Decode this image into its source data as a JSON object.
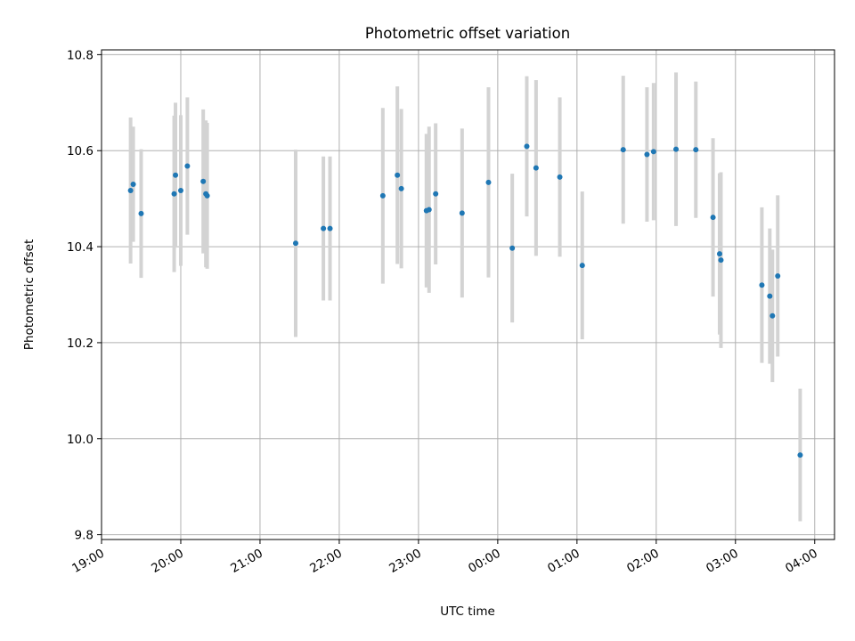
{
  "chart_data": {
    "type": "scatter",
    "title": "Photometric offset variation",
    "xlabel": "UTC time",
    "ylabel": "Photometric offset",
    "x_unit": "UTC time (hours since 19:00 on the first night)",
    "xlim": [
      "19:00",
      "04:15"
    ],
    "ylim": [
      9.79,
      10.81
    ],
    "xticks": [
      "19:00",
      "20:00",
      "21:00",
      "22:00",
      "23:00",
      "00:00",
      "01:00",
      "02:00",
      "03:00",
      "04:00"
    ],
    "yticks": [
      9.8,
      10.0,
      10.2,
      10.4,
      10.6,
      10.8
    ],
    "ytick_labels": [
      "9.8",
      "10.0",
      "10.2",
      "10.4",
      "10.6",
      "10.8"
    ],
    "grid": true,
    "point_color": "#1f77b4",
    "errorbar_color": "#d3d3d3",
    "points": [
      {
        "t": "19:22",
        "y": 10.517,
        "err": 0.152
      },
      {
        "t": "19:24",
        "y": 10.53,
        "err": 0.12
      },
      {
        "t": "19:30",
        "y": 10.469,
        "err": 0.134
      },
      {
        "t": "19:55",
        "y": 10.51,
        "err": 0.163
      },
      {
        "t": "19:56",
        "y": 10.549,
        "err": 0.151
      },
      {
        "t": "20:00",
        "y": 10.517,
        "err": 0.157
      },
      {
        "t": "20:05",
        "y": 10.568,
        "err": 0.143
      },
      {
        "t": "20:17",
        "y": 10.536,
        "err": 0.15
      },
      {
        "t": "20:19",
        "y": 10.51,
        "err": 0.153
      },
      {
        "t": "20:20",
        "y": 10.506,
        "err": 0.152
      },
      {
        "t": "21:27",
        "y": 10.407,
        "err": 0.195
      },
      {
        "t": "21:48",
        "y": 10.438,
        "err": 0.15
      },
      {
        "t": "21:53",
        "y": 10.438,
        "err": 0.15
      },
      {
        "t": "22:33",
        "y": 10.506,
        "err": 0.183
      },
      {
        "t": "22:44",
        "y": 10.549,
        "err": 0.185
      },
      {
        "t": "22:47",
        "y": 10.521,
        "err": 0.166
      },
      {
        "t": "23:06",
        "y": 10.475,
        "err": 0.16
      },
      {
        "t": "23:08",
        "y": 10.477,
        "err": 0.173
      },
      {
        "t": "23:13",
        "y": 10.51,
        "err": 0.147
      },
      {
        "t": "23:33",
        "y": 10.47,
        "err": 0.176
      },
      {
        "t": "23:53",
        "y": 10.534,
        "err": 0.198
      },
      {
        "t": "00:11",
        "y": 10.397,
        "err": 0.155
      },
      {
        "t": "00:22",
        "y": 10.609,
        "err": 0.146
      },
      {
        "t": "00:29",
        "y": 10.564,
        "err": 0.183
      },
      {
        "t": "00:47",
        "y": 10.545,
        "err": 0.166
      },
      {
        "t": "01:04",
        "y": 10.361,
        "err": 0.154
      },
      {
        "t": "01:35",
        "y": 10.602,
        "err": 0.154
      },
      {
        "t": "01:53",
        "y": 10.592,
        "err": 0.14
      },
      {
        "t": "01:58",
        "y": 10.598,
        "err": 0.143
      },
      {
        "t": "02:15",
        "y": 10.603,
        "err": 0.16
      },
      {
        "t": "02:30",
        "y": 10.602,
        "err": 0.142
      },
      {
        "t": "02:43",
        "y": 10.461,
        "err": 0.165
      },
      {
        "t": "02:48",
        "y": 10.385,
        "err": 0.168
      },
      {
        "t": "02:49",
        "y": 10.372,
        "err": 0.183
      },
      {
        "t": "03:20",
        "y": 10.32,
        "err": 0.162
      },
      {
        "t": "03:26",
        "y": 10.297,
        "err": 0.141
      },
      {
        "t": "03:28",
        "y": 10.256,
        "err": 0.138
      },
      {
        "t": "03:32",
        "y": 10.339,
        "err": 0.168
      },
      {
        "t": "03:49",
        "y": 9.966,
        "err": 0.138
      }
    ]
  }
}
